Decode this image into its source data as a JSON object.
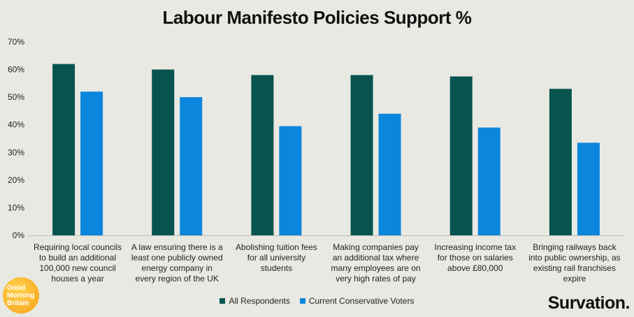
{
  "chart_data": {
    "type": "bar",
    "title": "Labour Manifesto Policies Support %",
    "xlabel": "",
    "ylabel": "",
    "ylim": [
      0,
      70
    ],
    "yticks": [
      "0%",
      "10%",
      "20%",
      "30%",
      "40%",
      "50%",
      "60%",
      "70%"
    ],
    "grid": false,
    "legend_position": "bottom",
    "categories": [
      [
        "Requiring local councils",
        "to build an additional",
        "100,000 new council",
        "houses a year"
      ],
      [
        "A law ensuring there is a",
        "least one publicly owned",
        "energy company in",
        "every region of the UK"
      ],
      [
        "Abolishing tuition fees",
        "for all university",
        "students"
      ],
      [
        "Making companies pay",
        "an additional tax where",
        "many employees are on",
        "very high rates of pay"
      ],
      [
        "Increasing income tax",
        "for those on salaries",
        "above £80,000"
      ],
      [
        "Bringing railways back",
        "into public ownership, as",
        "existing rail franchises",
        "expire"
      ]
    ],
    "series": [
      {
        "name": "All Respondents",
        "color": "#07544f",
        "values": [
          62,
          60,
          58,
          58,
          57.5,
          53
        ]
      },
      {
        "name": "Current Conservative Voters",
        "color": "#0a86dc",
        "values": [
          52,
          50,
          39.5,
          44,
          39,
          33.5
        ]
      }
    ]
  },
  "branding": {
    "gmb_logo": [
      "Good",
      "Morning",
      "Britain"
    ],
    "survation": "Survation."
  }
}
